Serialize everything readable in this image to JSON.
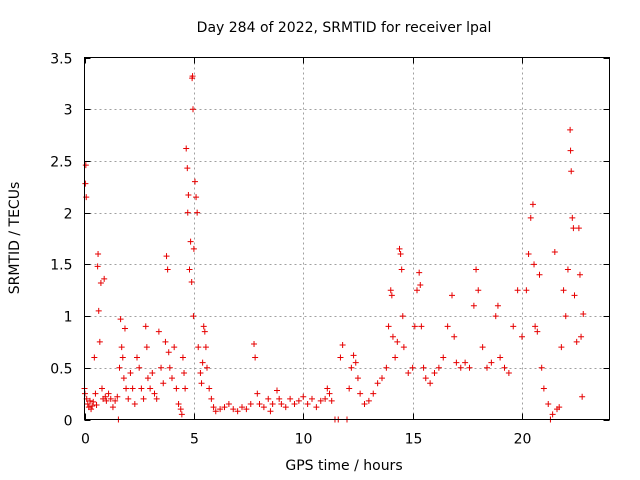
{
  "chart_data": {
    "type": "scatter",
    "title": "Day 284 of 2022, SRMTID for receiver lpal",
    "xlabel": "GPS time / hours",
    "ylabel": "SRMTID / TECUs",
    "xlim": [
      0,
      24
    ],
    "ylim": [
      0,
      3.5
    ],
    "xticks": [
      0,
      5,
      10,
      15,
      20
    ],
    "xtick_labels": [
      "0",
      "5",
      "10",
      "15",
      "20"
    ],
    "yticks": [
      0,
      0.5,
      1,
      1.5,
      2,
      2.5,
      3,
      3.5
    ],
    "ytick_labels": [
      "0",
      "0.5",
      "1",
      "1.5",
      "2",
      "2.5",
      "3",
      "3.5"
    ],
    "grid": true,
    "marker": "+",
    "color": "#e60000",
    "series": [
      {
        "name": "SRMTID",
        "points": [
          [
            0.0,
            0.3
          ],
          [
            0.02,
            0.25
          ],
          [
            0.04,
            2.28
          ],
          [
            0.06,
            2.46
          ],
          [
            0.08,
            2.15
          ],
          [
            0.1,
            0.2
          ],
          [
            0.15,
            0.15
          ],
          [
            0.2,
            0.12
          ],
          [
            0.25,
            0.18
          ],
          [
            0.3,
            0.1
          ],
          [
            0.35,
            0.13
          ],
          [
            0.4,
            0.17
          ],
          [
            0.45,
            0.6
          ],
          [
            0.5,
            0.25
          ],
          [
            0.55,
            0.14
          ],
          [
            0.6,
            1.48
          ],
          [
            0.62,
            1.6
          ],
          [
            0.65,
            1.05
          ],
          [
            0.7,
            0.75
          ],
          [
            0.75,
            1.32
          ],
          [
            0.8,
            0.3
          ],
          [
            0.85,
            0.2
          ],
          [
            0.9,
            1.36
          ],
          [
            0.95,
            0.22
          ],
          [
            1.0,
            0.18
          ],
          [
            1.1,
            0.25
          ],
          [
            1.2,
            0.2
          ],
          [
            1.3,
            0.12
          ],
          [
            1.4,
            0.18
          ],
          [
            1.5,
            0.22
          ],
          [
            1.55,
            0.0
          ],
          [
            1.6,
            0.5
          ],
          [
            1.65,
            0.97
          ],
          [
            1.7,
            0.7
          ],
          [
            1.75,
            0.6
          ],
          [
            1.8,
            0.4
          ],
          [
            1.85,
            0.88
          ],
          [
            1.9,
            0.3
          ],
          [
            2.0,
            0.2
          ],
          [
            2.1,
            0.45
          ],
          [
            2.2,
            0.3
          ],
          [
            2.3,
            0.15
          ],
          [
            2.4,
            0.6
          ],
          [
            2.5,
            0.5
          ],
          [
            2.6,
            0.3
          ],
          [
            2.7,
            0.2
          ],
          [
            2.8,
            0.9
          ],
          [
            2.85,
            0.7
          ],
          [
            2.9,
            0.4
          ],
          [
            3.0,
            0.3
          ],
          [
            3.1,
            0.45
          ],
          [
            3.2,
            0.25
          ],
          [
            3.3,
            0.2
          ],
          [
            3.4,
            0.85
          ],
          [
            3.5,
            0.5
          ],
          [
            3.6,
            0.35
          ],
          [
            3.7,
            0.75
          ],
          [
            3.75,
            1.58
          ],
          [
            3.8,
            1.45
          ],
          [
            3.85,
            0.65
          ],
          [
            3.9,
            0.5
          ],
          [
            4.0,
            0.4
          ],
          [
            4.1,
            0.7
          ],
          [
            4.2,
            0.3
          ],
          [
            4.3,
            0.15
          ],
          [
            4.4,
            0.1
          ],
          [
            4.45,
            0.05
          ],
          [
            4.5,
            0.6
          ],
          [
            4.55,
            0.45
          ],
          [
            4.6,
            0.3
          ],
          [
            4.65,
            2.62
          ],
          [
            4.7,
            2.43
          ],
          [
            4.72,
            2.0
          ],
          [
            4.75,
            2.17
          ],
          [
            4.8,
            1.45
          ],
          [
            4.85,
            1.72
          ],
          [
            4.9,
            1.33
          ],
          [
            4.92,
            3.3
          ],
          [
            4.94,
            3.32
          ],
          [
            4.96,
            3.0
          ],
          [
            4.98,
            1.0
          ],
          [
            5.0,
            1.65
          ],
          [
            5.05,
            2.3
          ],
          [
            5.1,
            2.15
          ],
          [
            5.15,
            2.0
          ],
          [
            5.2,
            0.7
          ],
          [
            5.3,
            0.45
          ],
          [
            5.35,
            0.35
          ],
          [
            5.4,
            0.55
          ],
          [
            5.45,
            0.9
          ],
          [
            5.5,
            0.85
          ],
          [
            5.55,
            0.7
          ],
          [
            5.6,
            0.5
          ],
          [
            5.7,
            0.3
          ],
          [
            5.8,
            0.2
          ],
          [
            5.9,
            0.12
          ],
          [
            6.0,
            0.08
          ],
          [
            6.2,
            0.1
          ],
          [
            6.4,
            0.12
          ],
          [
            6.6,
            0.15
          ],
          [
            6.8,
            0.1
          ],
          [
            7.0,
            0.08
          ],
          [
            7.2,
            0.12
          ],
          [
            7.4,
            0.1
          ],
          [
            7.6,
            0.15
          ],
          [
            7.75,
            0.73
          ],
          [
            7.8,
            0.6
          ],
          [
            7.9,
            0.25
          ],
          [
            8.0,
            0.15
          ],
          [
            8.2,
            0.12
          ],
          [
            8.4,
            0.2
          ],
          [
            8.5,
            0.08
          ],
          [
            8.6,
            0.15
          ],
          [
            8.8,
            0.28
          ],
          [
            8.9,
            0.2
          ],
          [
            9.0,
            0.15
          ],
          [
            9.2,
            0.12
          ],
          [
            9.4,
            0.2
          ],
          [
            9.6,
            0.15
          ],
          [
            9.8,
            0.18
          ],
          [
            10.0,
            0.22
          ],
          [
            10.2,
            0.15
          ],
          [
            10.4,
            0.2
          ],
          [
            10.6,
            0.12
          ],
          [
            10.8,
            0.18
          ],
          [
            11.0,
            0.2
          ],
          [
            11.1,
            0.3
          ],
          [
            11.2,
            0.25
          ],
          [
            11.3,
            0.18
          ],
          [
            11.45,
            0.0
          ],
          [
            11.6,
            0.0
          ],
          [
            11.7,
            0.6
          ],
          [
            11.8,
            0.72
          ],
          [
            12.0,
            0.0
          ],
          [
            12.1,
            0.3
          ],
          [
            12.2,
            0.5
          ],
          [
            12.3,
            0.62
          ],
          [
            12.4,
            0.55
          ],
          [
            12.5,
            0.4
          ],
          [
            12.6,
            0.25
          ],
          [
            12.8,
            0.15
          ],
          [
            13.0,
            0.18
          ],
          [
            13.2,
            0.25
          ],
          [
            13.4,
            0.35
          ],
          [
            13.6,
            0.4
          ],
          [
            13.8,
            0.5
          ],
          [
            13.9,
            0.9
          ],
          [
            14.0,
            1.25
          ],
          [
            14.05,
            1.2
          ],
          [
            14.1,
            0.8
          ],
          [
            14.2,
            0.6
          ],
          [
            14.3,
            0.75
          ],
          [
            14.4,
            1.65
          ],
          [
            14.45,
            1.6
          ],
          [
            14.5,
            1.45
          ],
          [
            14.55,
            1.0
          ],
          [
            14.6,
            0.7
          ],
          [
            14.8,
            0.45
          ],
          [
            15.0,
            0.5
          ],
          [
            15.1,
            0.9
          ],
          [
            15.2,
            1.25
          ],
          [
            15.3,
            1.42
          ],
          [
            15.35,
            1.3
          ],
          [
            15.4,
            0.9
          ],
          [
            15.5,
            0.5
          ],
          [
            15.6,
            0.4
          ],
          [
            15.8,
            0.35
          ],
          [
            16.0,
            0.45
          ],
          [
            16.2,
            0.5
          ],
          [
            16.4,
            0.6
          ],
          [
            16.6,
            0.9
          ],
          [
            16.8,
            1.2
          ],
          [
            16.9,
            0.8
          ],
          [
            17.0,
            0.55
          ],
          [
            17.2,
            0.5
          ],
          [
            17.4,
            0.55
          ],
          [
            17.6,
            0.5
          ],
          [
            17.8,
            1.1
          ],
          [
            17.9,
            1.45
          ],
          [
            18.0,
            1.25
          ],
          [
            18.2,
            0.7
          ],
          [
            18.4,
            0.5
          ],
          [
            18.6,
            0.55
          ],
          [
            18.8,
            1.0
          ],
          [
            18.9,
            1.1
          ],
          [
            19.0,
            0.6
          ],
          [
            19.2,
            0.5
          ],
          [
            19.4,
            0.45
          ],
          [
            19.6,
            0.9
          ],
          [
            19.8,
            1.25
          ],
          [
            20.0,
            0.8
          ],
          [
            20.2,
            1.25
          ],
          [
            20.3,
            1.6
          ],
          [
            20.4,
            1.95
          ],
          [
            20.5,
            2.08
          ],
          [
            20.55,
            1.5
          ],
          [
            20.6,
            0.9
          ],
          [
            20.7,
            0.85
          ],
          [
            20.8,
            1.4
          ],
          [
            20.9,
            0.5
          ],
          [
            21.0,
            0.3
          ],
          [
            21.2,
            0.15
          ],
          [
            21.3,
            0.0
          ],
          [
            21.4,
            0.05
          ],
          [
            21.5,
            1.62
          ],
          [
            21.6,
            0.1
          ],
          [
            21.7,
            0.12
          ],
          [
            21.8,
            0.7
          ],
          [
            21.9,
            1.25
          ],
          [
            22.0,
            1.0
          ],
          [
            22.1,
            1.45
          ],
          [
            22.2,
            2.8
          ],
          [
            22.22,
            2.6
          ],
          [
            22.25,
            2.4
          ],
          [
            22.3,
            1.95
          ],
          [
            22.35,
            1.85
          ],
          [
            22.4,
            1.2
          ],
          [
            22.5,
            0.75
          ],
          [
            22.6,
            1.85
          ],
          [
            22.65,
            1.4
          ],
          [
            22.7,
            0.8
          ],
          [
            22.75,
            0.22
          ],
          [
            22.8,
            1.02
          ]
        ]
      }
    ]
  }
}
